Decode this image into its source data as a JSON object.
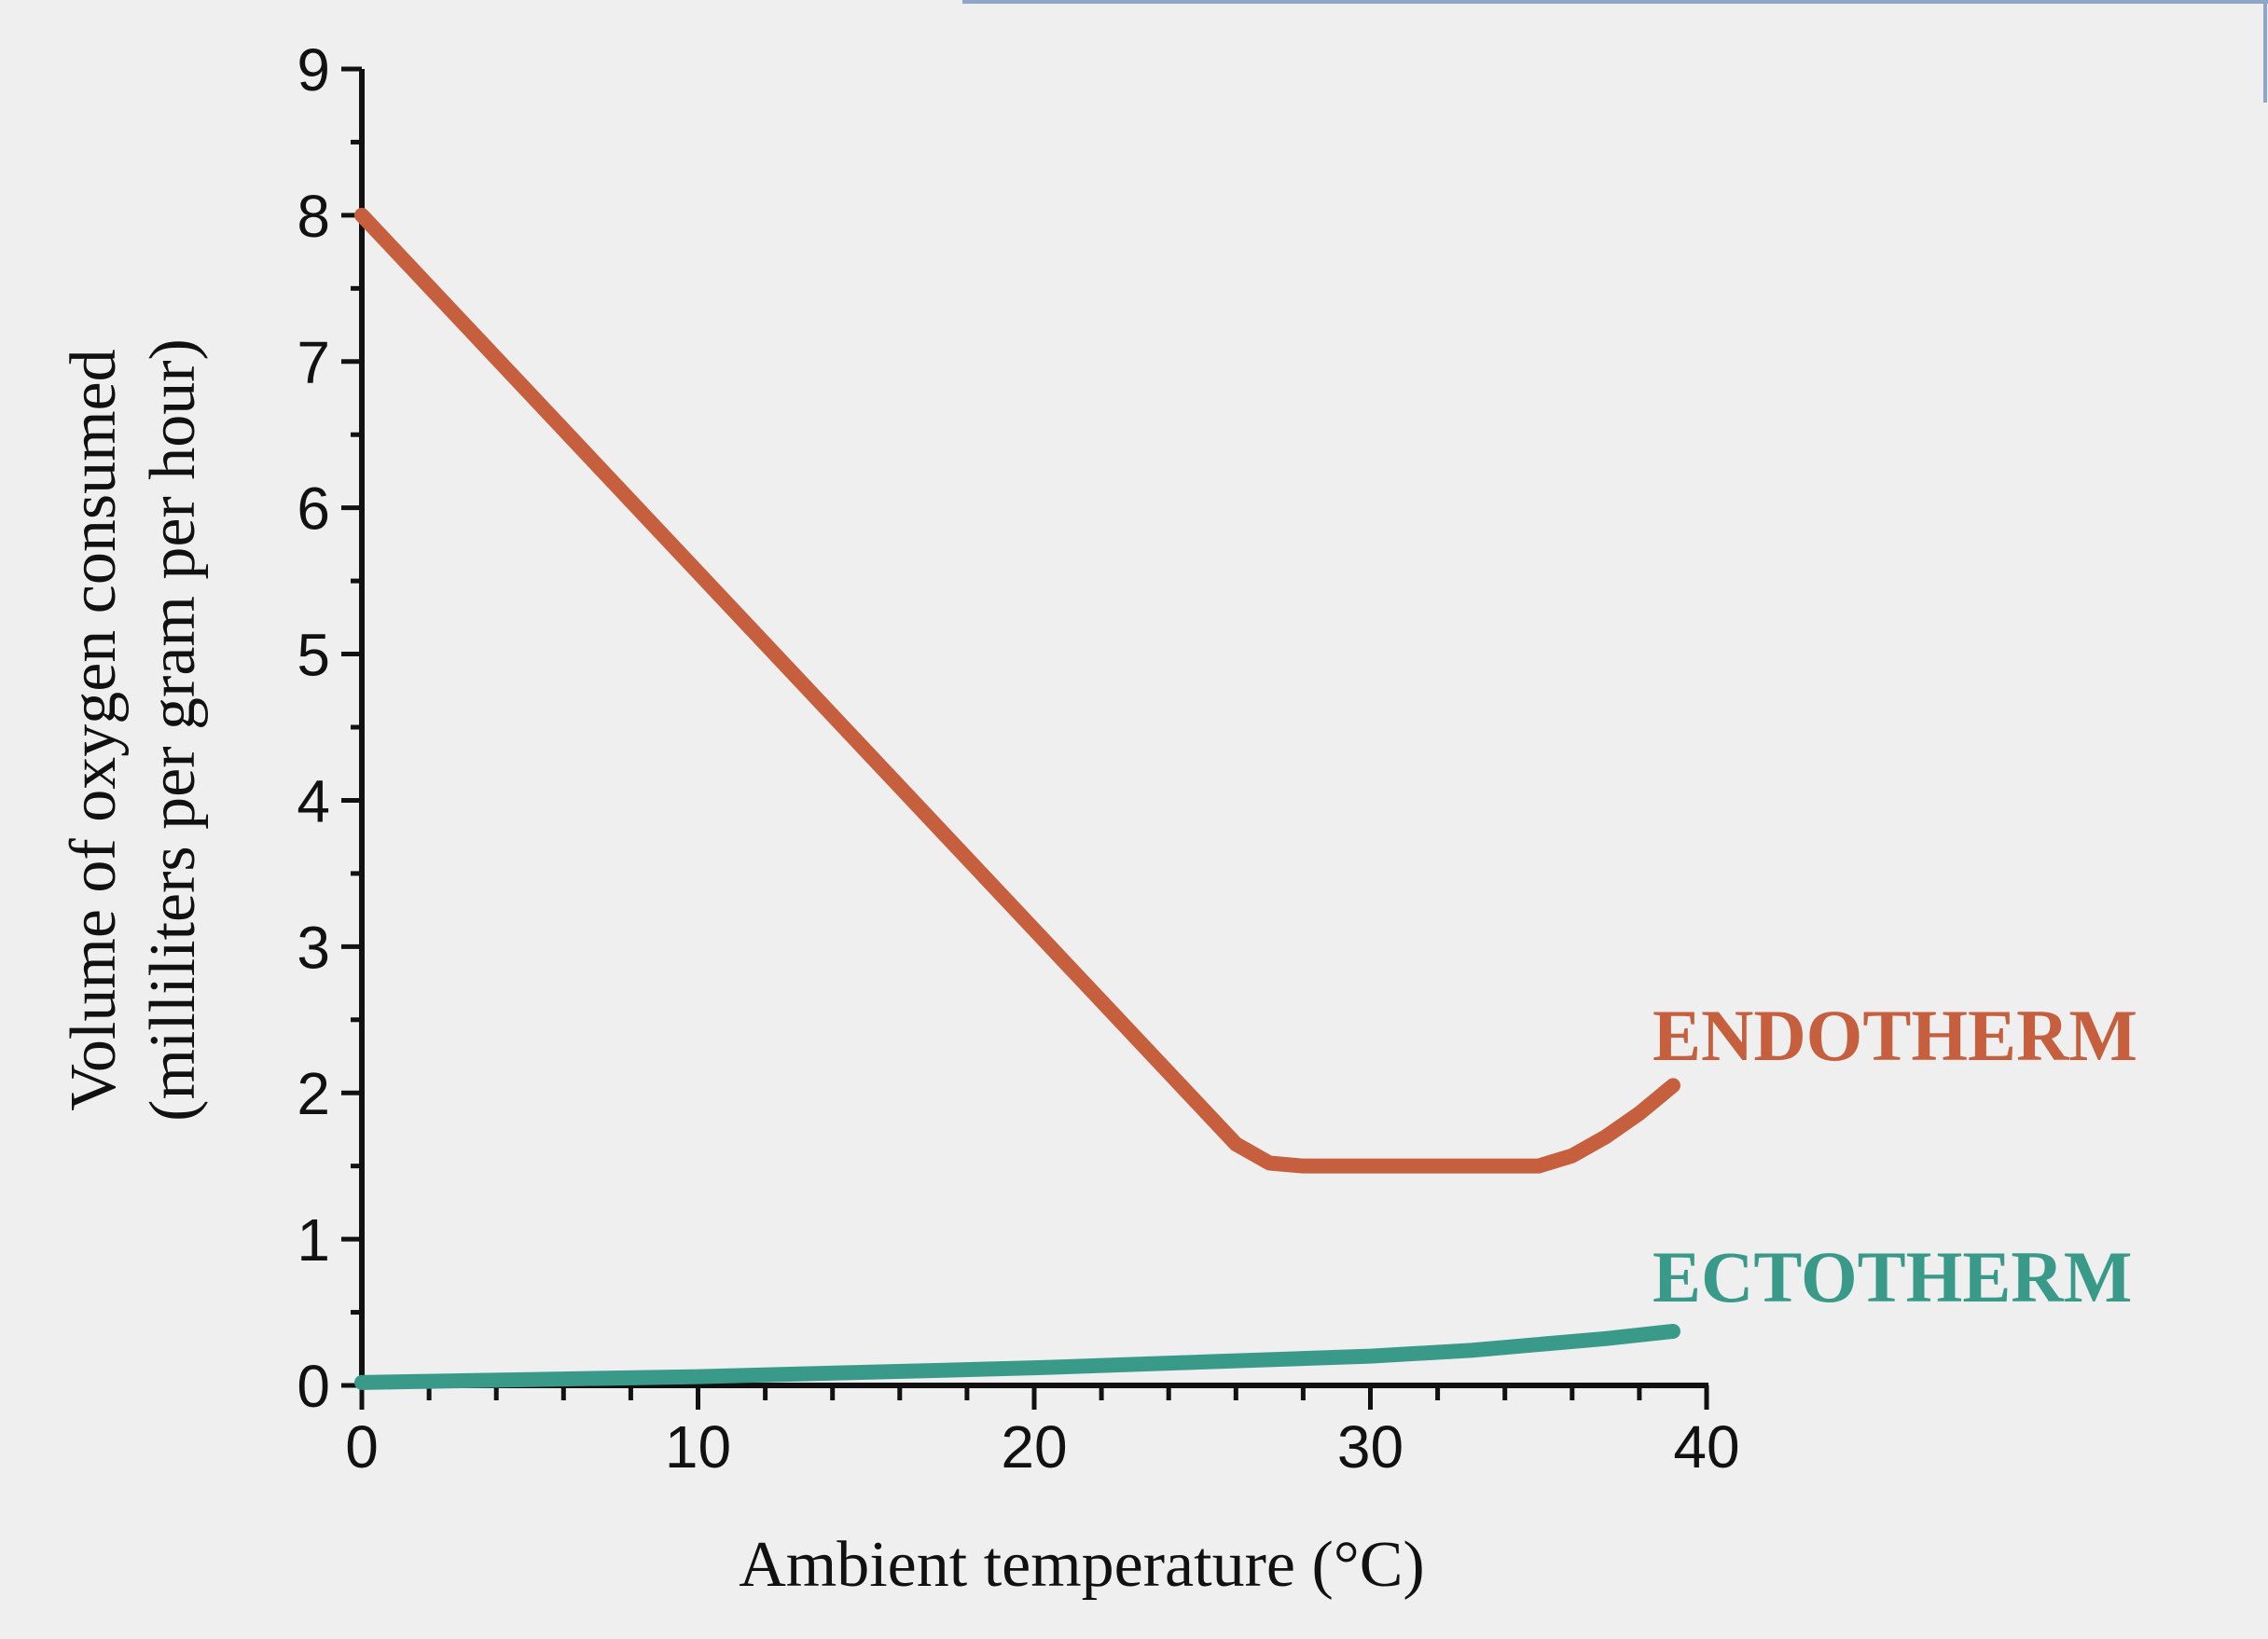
{
  "chart_data": {
    "type": "line",
    "title": "",
    "xlabel": "Ambient temperature (°C)",
    "ylabel": [
      "Volume of oxygen consumed",
      "(milliliters per gram per hour)"
    ],
    "xlim": [
      0,
      40
    ],
    "ylim": [
      0,
      9
    ],
    "x_ticks": [
      0,
      10,
      20,
      30,
      40
    ],
    "y_ticks": [
      0,
      1,
      2,
      3,
      4,
      5,
      6,
      7,
      8,
      9
    ],
    "x_minor_step": 2,
    "y_minor_step": 0.5,
    "grid": false,
    "legend": "inline labels at right end of lines",
    "series": [
      {
        "name": "ENDOTHERM",
        "color": "#c65f3e",
        "x": [
          0,
          26,
          27,
          28,
          35,
          36,
          37,
          38,
          39
        ],
        "y": [
          8.0,
          1.65,
          1.52,
          1.5,
          1.5,
          1.57,
          1.7,
          1.86,
          2.05
        ]
      },
      {
        "name": "ECTOTHERM",
        "color": "#3a9a8a",
        "x": [
          0,
          5,
          10,
          15,
          20,
          25,
          30,
          33,
          35,
          37,
          39
        ],
        "y": [
          0.02,
          0.04,
          0.06,
          0.09,
          0.12,
          0.16,
          0.2,
          0.24,
          0.28,
          0.32,
          0.37
        ]
      }
    ]
  }
}
